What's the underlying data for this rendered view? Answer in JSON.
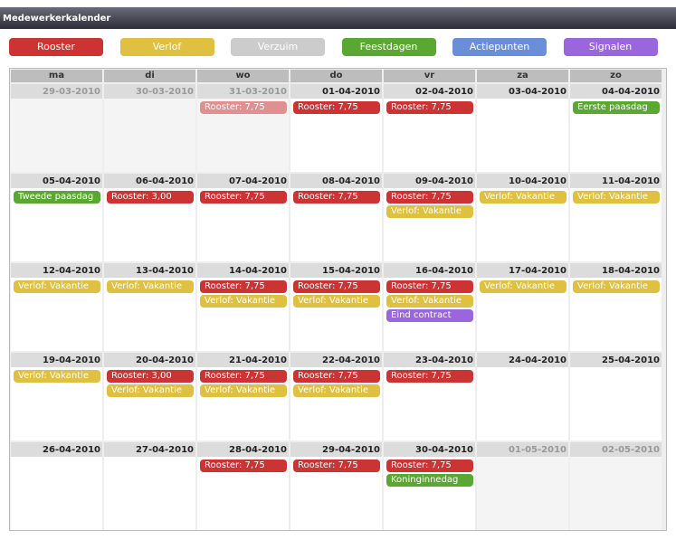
{
  "header": {
    "title": "Medewerkerkalender"
  },
  "legend": [
    {
      "label": "Rooster",
      "color": "#cc3333"
    },
    {
      "label": "Verlof",
      "color": "#e0c040"
    },
    {
      "label": "Verzuim",
      "color": "#cccccc"
    },
    {
      "label": "Feestdagen",
      "color": "#5aa832"
    },
    {
      "label": "Actiepunten",
      "color": "#6a8fd8"
    },
    {
      "label": "Signalen",
      "color": "#9966dd"
    }
  ],
  "weekdays": [
    "ma",
    "di",
    "wo",
    "do",
    "vr",
    "za",
    "zo"
  ],
  "weeks": [
    [
      {
        "date": "29-03-2010",
        "outside": true,
        "events": []
      },
      {
        "date": "30-03-2010",
        "outside": true,
        "events": []
      },
      {
        "date": "31-03-2010",
        "outside": true,
        "events": [
          {
            "label": "Rooster: 7,75",
            "color": "#e09090"
          }
        ]
      },
      {
        "date": "01-04-2010",
        "events": [
          {
            "label": "Rooster: 7,75",
            "color": "#cc3333"
          }
        ]
      },
      {
        "date": "02-04-2010",
        "events": [
          {
            "label": "Rooster: 7,75",
            "color": "#cc3333"
          }
        ]
      },
      {
        "date": "03-04-2010",
        "events": []
      },
      {
        "date": "04-04-2010",
        "events": [
          {
            "label": "Eerste paasdag",
            "color": "#5aa832"
          }
        ]
      }
    ],
    [
      {
        "date": "05-04-2010",
        "events": [
          {
            "label": "Tweede paasdag",
            "color": "#5aa832"
          }
        ]
      },
      {
        "date": "06-04-2010",
        "events": [
          {
            "label": "Rooster: 3,00",
            "color": "#cc3333"
          }
        ]
      },
      {
        "date": "07-04-2010",
        "events": [
          {
            "label": "Rooster: 7,75",
            "color": "#cc3333"
          }
        ]
      },
      {
        "date": "08-04-2010",
        "events": [
          {
            "label": "Rooster: 7,75",
            "color": "#cc3333"
          }
        ]
      },
      {
        "date": "09-04-2010",
        "events": [
          {
            "label": "Rooster: 7,75",
            "color": "#cc3333"
          },
          {
            "label": "Verlof: Vakantie",
            "color": "#e0c040"
          }
        ]
      },
      {
        "date": "10-04-2010",
        "events": [
          {
            "label": "Verlof: Vakantie",
            "color": "#e0c040"
          }
        ]
      },
      {
        "date": "11-04-2010",
        "events": [
          {
            "label": "Verlof: Vakantie",
            "color": "#e0c040"
          }
        ]
      }
    ],
    [
      {
        "date": "12-04-2010",
        "events": [
          {
            "label": "Verlof: Vakantie",
            "color": "#e0c040"
          }
        ]
      },
      {
        "date": "13-04-2010",
        "events": [
          {
            "label": "Verlof: Vakantie",
            "color": "#e0c040"
          }
        ]
      },
      {
        "date": "14-04-2010",
        "events": [
          {
            "label": "Rooster: 7,75",
            "color": "#cc3333"
          },
          {
            "label": "Verlof: Vakantie",
            "color": "#e0c040"
          }
        ]
      },
      {
        "date": "15-04-2010",
        "events": [
          {
            "label": "Rooster: 7,75",
            "color": "#cc3333"
          },
          {
            "label": "Verlof: Vakantie",
            "color": "#e0c040"
          }
        ]
      },
      {
        "date": "16-04-2010",
        "events": [
          {
            "label": "Rooster: 7,75",
            "color": "#cc3333"
          },
          {
            "label": "Verlof: Vakantie",
            "color": "#e0c040"
          },
          {
            "label": "Eind contract",
            "color": "#9966dd"
          }
        ]
      },
      {
        "date": "17-04-2010",
        "events": [
          {
            "label": "Verlof: Vakantie",
            "color": "#e0c040"
          }
        ]
      },
      {
        "date": "18-04-2010",
        "events": [
          {
            "label": "Verlof: Vakantie",
            "color": "#e0c040"
          }
        ]
      }
    ],
    [
      {
        "date": "19-04-2010",
        "events": [
          {
            "label": "Verlof: Vakantie",
            "color": "#e0c040"
          }
        ]
      },
      {
        "date": "20-04-2010",
        "events": [
          {
            "label": "Rooster: 3,00",
            "color": "#cc3333"
          },
          {
            "label": "Verlof: Vakantie",
            "color": "#e0c040"
          }
        ]
      },
      {
        "date": "21-04-2010",
        "events": [
          {
            "label": "Rooster: 7,75",
            "color": "#cc3333"
          },
          {
            "label": "Verlof: Vakantie",
            "color": "#e0c040"
          }
        ]
      },
      {
        "date": "22-04-2010",
        "events": [
          {
            "label": "Rooster: 7,75",
            "color": "#cc3333"
          },
          {
            "label": "Verlof: Vakantie",
            "color": "#e0c040"
          }
        ]
      },
      {
        "date": "23-04-2010",
        "events": [
          {
            "label": "Rooster: 7,75",
            "color": "#cc3333"
          }
        ]
      },
      {
        "date": "24-04-2010",
        "events": []
      },
      {
        "date": "25-04-2010",
        "events": []
      }
    ],
    [
      {
        "date": "26-04-2010",
        "events": []
      },
      {
        "date": "27-04-2010",
        "events": []
      },
      {
        "date": "28-04-2010",
        "events": [
          {
            "label": "Rooster: 7,75",
            "color": "#cc3333"
          }
        ]
      },
      {
        "date": "29-04-2010",
        "events": [
          {
            "label": "Rooster: 7,75",
            "color": "#cc3333"
          }
        ]
      },
      {
        "date": "30-04-2010",
        "events": [
          {
            "label": "Rooster: 7,75",
            "color": "#cc3333"
          },
          {
            "label": "Koninginnedag",
            "color": "#5aa832"
          }
        ]
      },
      {
        "date": "01-05-2010",
        "outside": true,
        "events": []
      },
      {
        "date": "02-05-2010",
        "outside": true,
        "events": []
      }
    ]
  ]
}
